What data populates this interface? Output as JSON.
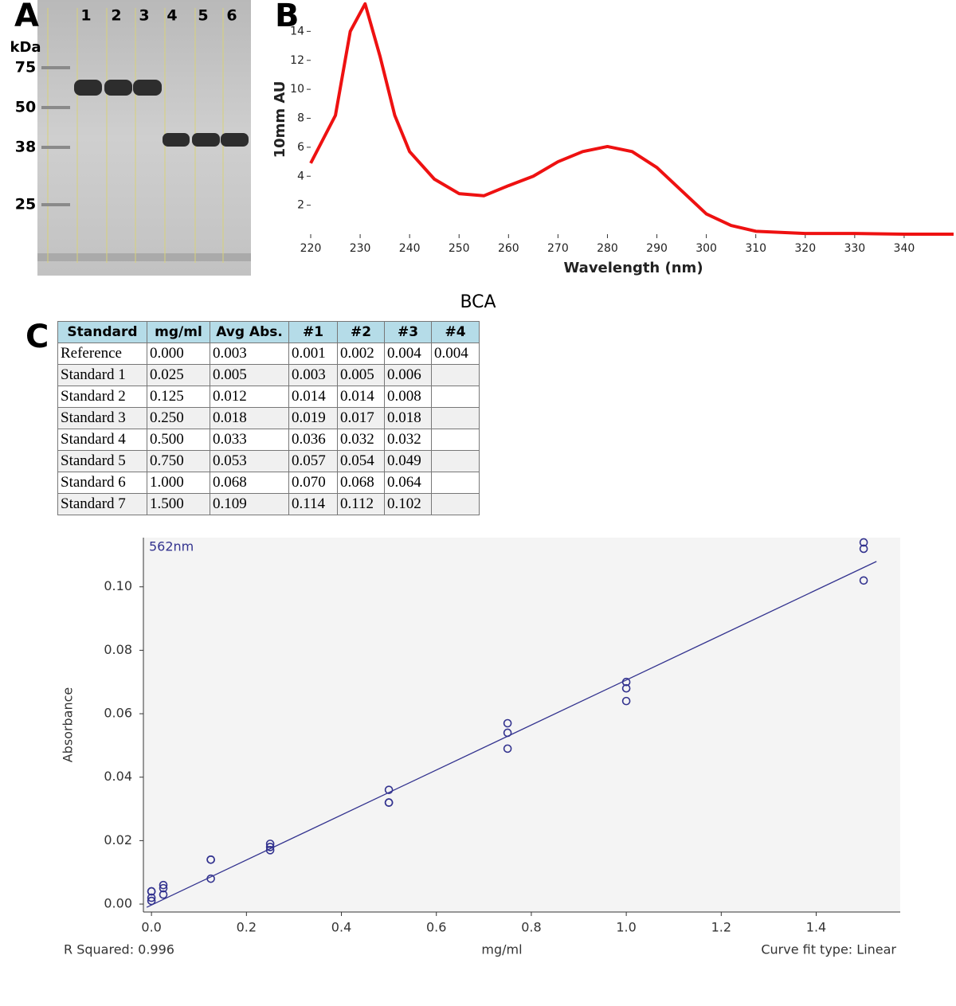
{
  "panel_a": {
    "label": "A",
    "unit": "kDa",
    "lanes": [
      "1",
      "2",
      "3",
      "4",
      "5",
      "6"
    ],
    "markers": [
      "75",
      "50",
      "38",
      "25"
    ]
  },
  "panel_b": {
    "label": "B",
    "chart_data": {
      "type": "line",
      "x_label": "Wavelength (nm)",
      "y_label": "10mm AU",
      "x": [
        220,
        225,
        228,
        231,
        234,
        237,
        240,
        245,
        250,
        255,
        260,
        265,
        270,
        275,
        280,
        285,
        290,
        295,
        300,
        305,
        310,
        320,
        330,
        340,
        350
      ],
      "series": [
        {
          "color": "#ee1111",
          "values": [
            4.9,
            8.2,
            14.0,
            15.9,
            12.3,
            8.2,
            5.7,
            3.8,
            2.8,
            2.65,
            3.35,
            4.0,
            5.0,
            5.7,
            6.05,
            5.7,
            4.6,
            3.0,
            1.4,
            0.6,
            0.2,
            0.05,
            0.05,
            0.0,
            0.0
          ]
        }
      ],
      "xlim": [
        220,
        350
      ],
      "ylim": [
        0,
        16
      ],
      "xticks": [
        220,
        230,
        240,
        250,
        260,
        270,
        280,
        290,
        300,
        310,
        320,
        330,
        340
      ],
      "yticks": [
        2,
        4,
        6,
        8,
        10,
        12,
        14
      ]
    }
  },
  "panel_c": {
    "label": "C",
    "title": "BCA",
    "table": {
      "header": [
        "Standard",
        "mg/ml",
        "Avg Abs.",
        "#1",
        "#2",
        "#3",
        "#4"
      ],
      "rows": [
        [
          "Reference",
          "0.000",
          "0.003",
          "0.001",
          "0.002",
          "0.004",
          "0.004"
        ],
        [
          "Standard 1",
          "0.025",
          "0.005",
          "0.003",
          "0.005",
          "0.006"
        ],
        [
          "Standard 2",
          "0.125",
          "0.012",
          "0.014",
          "0.014",
          "0.008"
        ],
        [
          "Standard 3",
          "0.250",
          "0.018",
          "0.019",
          "0.017",
          "0.018"
        ],
        [
          "Standard 4",
          "0.500",
          "0.033",
          "0.036",
          "0.032",
          "0.032"
        ],
        [
          "Standard 5",
          "0.750",
          "0.053",
          "0.057",
          "0.054",
          "0.049"
        ],
        [
          "Standard 6",
          "1.000",
          "0.068",
          "0.070",
          "0.068",
          "0.064"
        ],
        [
          "Standard 7",
          "1.500",
          "0.109",
          "0.114",
          "0.112",
          "0.102"
        ]
      ]
    },
    "chart_data": {
      "type": "scatter",
      "title": "562nm",
      "x_label": "mg/ml",
      "y_label": "Absorbance",
      "x": [
        0,
        0,
        0,
        0,
        0.025,
        0.025,
        0.025,
        0.125,
        0.125,
        0.125,
        0.25,
        0.25,
        0.25,
        0.5,
        0.5,
        0.5,
        0.75,
        0.75,
        0.75,
        1.0,
        1.0,
        1.0,
        1.5,
        1.5,
        1.5
      ],
      "series": [
        {
          "color": "#33338f",
          "values": [
            0.001,
            0.002,
            0.004,
            0.004,
            0.003,
            0.005,
            0.006,
            0.014,
            0.014,
            0.008,
            0.019,
            0.017,
            0.018,
            0.036,
            0.032,
            0.032,
            0.057,
            0.054,
            0.049,
            0.07,
            0.068,
            0.064,
            0.114,
            0.112,
            0.102
          ]
        }
      ],
      "fit_line": {
        "x": [
          -0.01,
          1.527
        ],
        "y": [
          -0.001,
          0.108
        ]
      },
      "xlim": [
        -0.017,
        1.577
      ],
      "ylim": [
        -0.0025,
        0.1155
      ],
      "xticks": [
        {
          "value": 0,
          "label": "0.0"
        },
        0.2,
        0.4,
        0.6,
        0.8,
        {
          "value": 1,
          "label": "1.0"
        },
        1.2,
        1.4
      ],
      "yticks": [
        {
          "value": 0,
          "label": "0.00"
        },
        0.02,
        0.04,
        0.06,
        0.08,
        {
          "value": 0.1,
          "label": "0.10"
        }
      ],
      "notes": [
        "R Squared: 0.996",
        "Curve fit type: Linear"
      ]
    }
  }
}
